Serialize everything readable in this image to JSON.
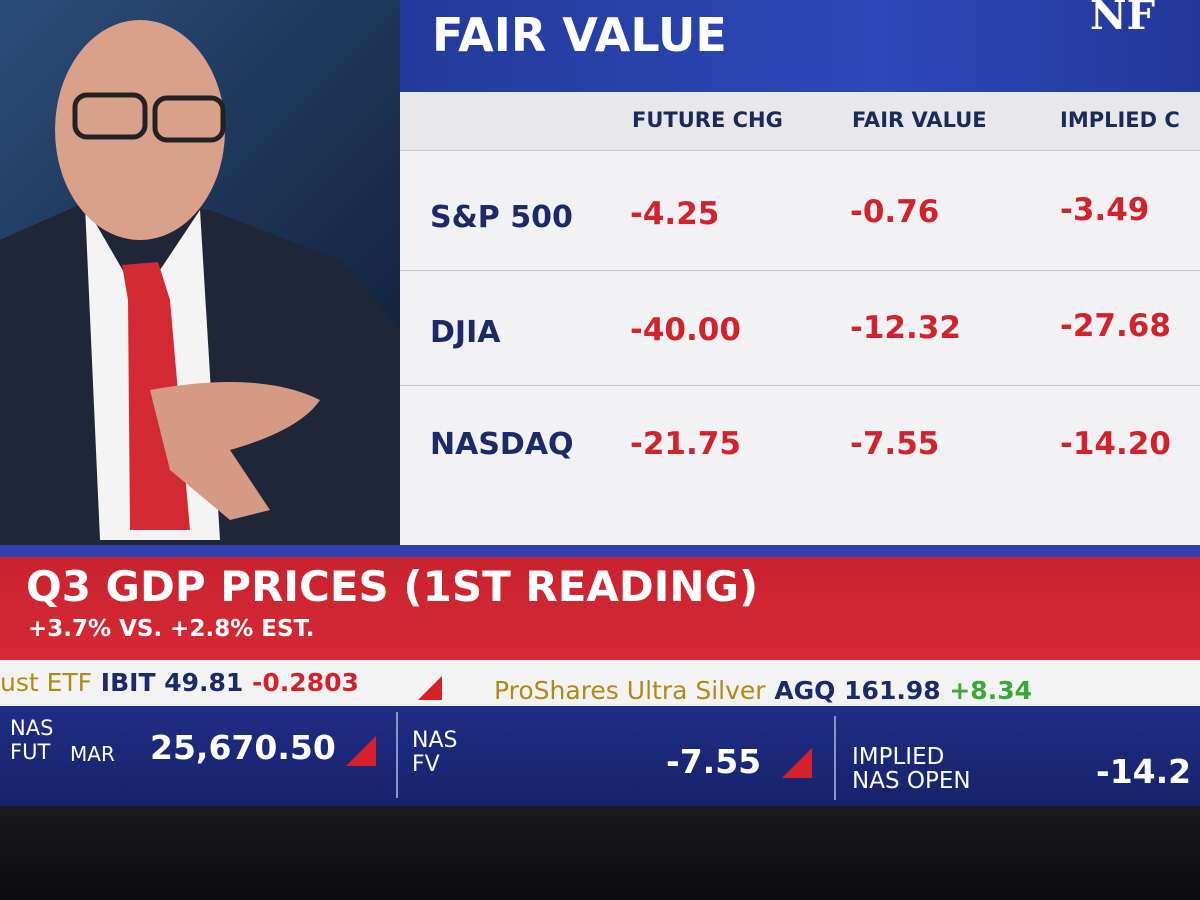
{
  "logo": "NF",
  "panel": {
    "title": "FAIR VALUE",
    "columns": [
      "FUTURE CHG",
      "FAIR VALUE",
      "IMPLIED C"
    ],
    "rows": [
      {
        "label": "S&P 500",
        "values": [
          "-4.25",
          "-0.76",
          "-3.49"
        ]
      },
      {
        "label": "DJIA",
        "values": [
          "-40.00",
          "-12.32",
          "-27.68"
        ]
      },
      {
        "label": "NASDAQ",
        "values": [
          "-21.75",
          "-7.55",
          "-14.20"
        ]
      }
    ]
  },
  "banner": {
    "headline": "Q3 GDP PRICES (1ST READING)",
    "subline": "+3.7% VS. +2.8% EST."
  },
  "ticker": [
    {
      "name": "ust ETF",
      "symbol": "IBIT",
      "price": "49.81",
      "change": "-0.2803"
    },
    {
      "name": "ProShares Ultra Silver",
      "symbol": "AGQ",
      "price": "161.98",
      "change": "+8.34"
    }
  ],
  "bottom": [
    {
      "label": [
        "NAS",
        "FUT"
      ],
      "sub": "MAR",
      "value": "25,670.50"
    },
    {
      "label": [
        "NAS",
        "FV"
      ],
      "value": "-7.55"
    },
    {
      "label": [
        "IMPLIED",
        "NAS OPEN"
      ],
      "value": "-14.2"
    }
  ]
}
